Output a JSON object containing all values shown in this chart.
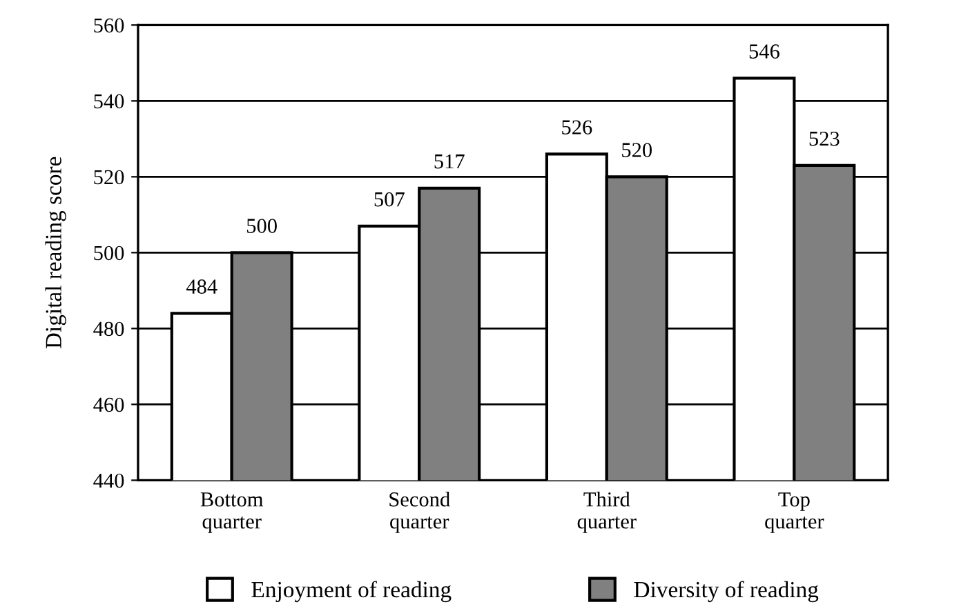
{
  "chart_data": {
    "type": "bar",
    "ylabel": "Digital reading score",
    "categories": [
      "Bottom\nquarter",
      "Second\nquarter",
      "Third\nquarter",
      "Top\nquarter"
    ],
    "series": [
      {
        "name": "Enjoyment of reading",
        "color": "#ffffff",
        "values": [
          484,
          507,
          526,
          546
        ]
      },
      {
        "name": "Diversity of reading",
        "color": "#808080",
        "values": [
          500,
          517,
          520,
          523
        ]
      }
    ],
    "ylim": [
      440,
      560
    ],
    "yticks": [
      440,
      460,
      480,
      500,
      520,
      540,
      560
    ],
    "grid": "y",
    "legend": "bottom",
    "data_labels": true
  }
}
